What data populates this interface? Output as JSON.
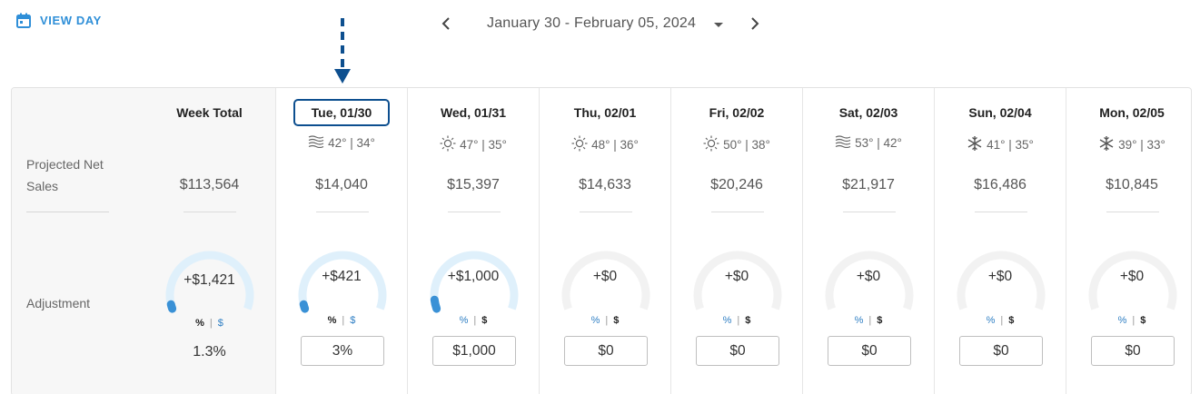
{
  "toolbar": {
    "view_day_label": "VIEW DAY",
    "view_day_icon": "calendar-icon",
    "date_range": "January 30 - February 05, 2024",
    "prev_icon": "chevron-left-icon",
    "next_icon": "chevron-right-icon",
    "dropdown_icon": "caret-down-icon",
    "accent_color": "#2f8fd8"
  },
  "row_labels": {
    "sales": "Projected Net Sales",
    "adjustment": "Adjustment"
  },
  "week_total": {
    "header": "Week Total",
    "sales": "$113,564",
    "adjustment": "+$1,421",
    "gauge_fill": 0.03,
    "pct_label": "%",
    "dollar_label": "$",
    "percent_value": "1.3%"
  },
  "days": [
    {
      "header": "Tue, 01/30",
      "weather_icon": "wind-icon",
      "temps": "42° | 34°",
      "sales": "$14,040",
      "adjustment": "+$421",
      "gauge_fill": 0.03,
      "pct_label": "%",
      "dollar_label": "$",
      "input_value": "3%",
      "mode": "percent",
      "selected": true
    },
    {
      "header": "Wed, 01/31",
      "weather_icon": "sun-icon",
      "temps": "47° | 35°",
      "sales": "$15,397",
      "adjustment": "+$1,000",
      "gauge_fill": 0.06,
      "pct_label": "%",
      "dollar_label": "$",
      "input_value": "$1,000",
      "mode": "dollar",
      "selected": false
    },
    {
      "header": "Thu, 02/01",
      "weather_icon": "sun-icon",
      "temps": "48° | 36°",
      "sales": "$14,633",
      "adjustment": "+$0",
      "gauge_fill": 0,
      "pct_label": "%",
      "dollar_label": "$",
      "input_value": "$0",
      "mode": "dollar",
      "selected": false
    },
    {
      "header": "Fri, 02/02",
      "weather_icon": "sun-icon",
      "temps": "50° | 38°",
      "sales": "$20,246",
      "adjustment": "+$0",
      "gauge_fill": 0,
      "pct_label": "%",
      "dollar_label": "$",
      "input_value": "$0",
      "mode": "dollar",
      "selected": false
    },
    {
      "header": "Sat, 02/03",
      "weather_icon": "wind-icon",
      "temps": "53° | 42°",
      "sales": "$21,917",
      "adjustment": "+$0",
      "gauge_fill": 0,
      "pct_label": "%",
      "dollar_label": "$",
      "input_value": "$0",
      "mode": "dollar",
      "selected": false
    },
    {
      "header": "Sun, 02/04",
      "weather_icon": "snowflake-icon",
      "temps": "41° | 35°",
      "sales": "$16,486",
      "adjustment": "+$0",
      "gauge_fill": 0,
      "pct_label": "%",
      "dollar_label": "$",
      "input_value": "$0",
      "mode": "dollar",
      "selected": false
    },
    {
      "header": "Mon, 02/05",
      "weather_icon": "snowflake-icon",
      "temps": "39° | 33°",
      "sales": "$10,845",
      "adjustment": "+$0",
      "gauge_fill": 0,
      "pct_label": "%",
      "dollar_label": "$",
      "input_value": "$0",
      "mode": "dollar",
      "selected": false
    }
  ]
}
